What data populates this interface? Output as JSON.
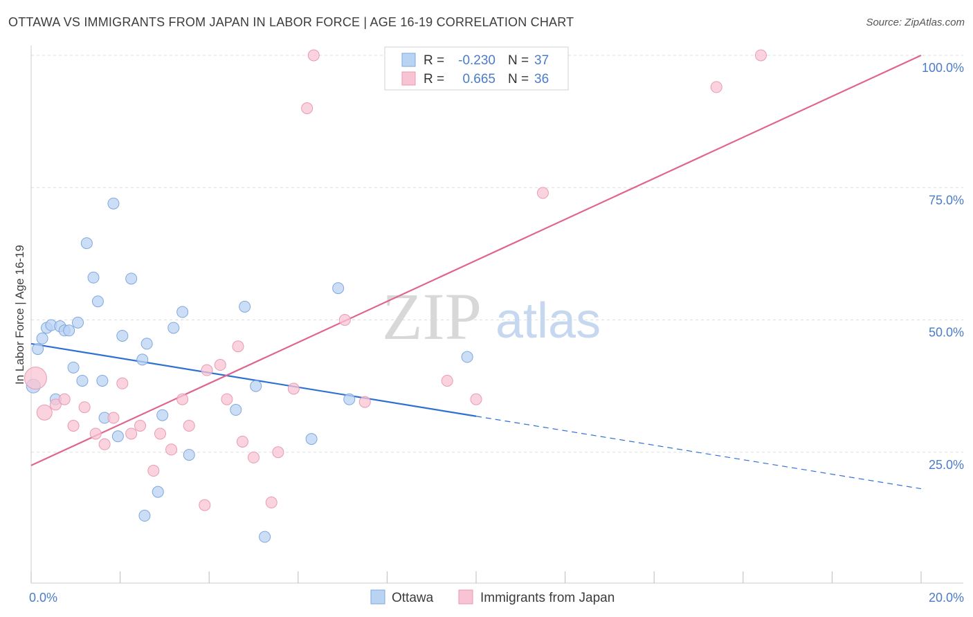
{
  "title": "OTTAWA VS IMMIGRANTS FROM JAPAN IN LABOR FORCE | AGE 16-19 CORRELATION CHART",
  "source": "Source: ZipAtlas.com",
  "watermark": {
    "zip": "ZIP",
    "atlas": "atlas"
  },
  "colors": {
    "blue_fill": "#b9d3f3",
    "blue_stroke": "#7ea7e0",
    "blue_line": "#2e6fd4",
    "pink_fill": "#f8c4d3",
    "pink_stroke": "#e99ab3",
    "pink_line": "#e0658e",
    "axis_label": "#4a7cc9",
    "grid": "#dddddd"
  },
  "legend": {
    "rows": [
      {
        "r_label": "R =",
        "r_value": "-0.230",
        "n_label": "N =",
        "n_value": "37"
      },
      {
        "r_label": "R =",
        "r_value": "0.665",
        "n_label": "N =",
        "n_value": "36"
      }
    ]
  },
  "chart_data": {
    "type": "scatter",
    "title": "OTTAWA VS IMMIGRANTS FROM JAPAN IN LABOR FORCE | AGE 16-19 CORRELATION CHART",
    "xlabel": "",
    "ylabel": "In Labor Force | Age 16-19",
    "xlim": [
      0,
      20
    ],
    "ylim": [
      0,
      105
    ],
    "x_tick_labels": [
      {
        "value": 0,
        "label": "0.0%"
      },
      {
        "value": 20,
        "label": "20.0%"
      }
    ],
    "y_tick_labels": [
      {
        "value": 25,
        "label": "25.0%"
      },
      {
        "value": 50,
        "label": "50.0%"
      },
      {
        "value": 75,
        "label": "75.0%"
      },
      {
        "value": 100,
        "label": "100.0%"
      }
    ],
    "series": [
      {
        "name": "Ottawa",
        "color": "blue",
        "trend": {
          "x0": 0,
          "y0": 45.5,
          "x1": 10,
          "y1": 31.8,
          "dash_to_x": 20,
          "dash_to_y": 18.1
        },
        "points": [
          [
            0.05,
            37.5
          ],
          [
            0.15,
            44.5
          ],
          [
            0.25,
            46.5
          ],
          [
            0.35,
            48.5
          ],
          [
            0.45,
            49.0
          ],
          [
            0.55,
            35.0
          ],
          [
            0.65,
            48.8
          ],
          [
            0.75,
            48.0
          ],
          [
            0.85,
            48.0
          ],
          [
            0.95,
            41.0
          ],
          [
            1.05,
            49.5
          ],
          [
            1.15,
            38.5
          ],
          [
            1.25,
            64.5
          ],
          [
            1.4,
            58.0
          ],
          [
            1.5,
            53.5
          ],
          [
            1.6,
            38.5
          ],
          [
            1.65,
            31.5
          ],
          [
            1.85,
            72.0
          ],
          [
            1.95,
            28.0
          ],
          [
            2.05,
            47.0
          ],
          [
            2.25,
            57.8
          ],
          [
            2.5,
            42.5
          ],
          [
            2.6,
            45.5
          ],
          [
            2.85,
            17.5
          ],
          [
            2.95,
            32.0
          ],
          [
            2.55,
            13.0
          ],
          [
            3.2,
            48.5
          ],
          [
            3.4,
            51.5
          ],
          [
            3.55,
            24.5
          ],
          [
            4.6,
            33.0
          ],
          [
            4.8,
            52.5
          ],
          [
            5.05,
            37.5
          ],
          [
            5.25,
            9.0
          ],
          [
            6.3,
            27.5
          ],
          [
            6.9,
            56.0
          ],
          [
            7.15,
            35.0
          ],
          [
            9.8,
            43.0
          ]
        ]
      },
      {
        "name": "Immigrants from Japan",
        "color": "pink",
        "trend": {
          "x0": 0,
          "y0": 22.5,
          "x1": 20,
          "y1": 100.0
        },
        "points": [
          [
            0.1,
            39.0
          ],
          [
            0.3,
            32.5
          ],
          [
            0.55,
            34.0
          ],
          [
            0.75,
            35.0
          ],
          [
            0.95,
            30.0
          ],
          [
            1.2,
            33.5
          ],
          [
            1.45,
            28.5
          ],
          [
            1.65,
            26.5
          ],
          [
            1.85,
            31.5
          ],
          [
            2.05,
            38.0
          ],
          [
            2.25,
            28.5
          ],
          [
            2.45,
            30.0
          ],
          [
            2.75,
            21.5
          ],
          [
            2.9,
            28.5
          ],
          [
            3.15,
            25.5
          ],
          [
            3.4,
            35.0
          ],
          [
            3.55,
            30.0
          ],
          [
            3.9,
            15.0
          ],
          [
            3.95,
            40.5
          ],
          [
            4.25,
            41.5
          ],
          [
            4.4,
            35.0
          ],
          [
            4.65,
            45.0
          ],
          [
            4.75,
            27.0
          ],
          [
            5.0,
            24.0
          ],
          [
            5.4,
            15.5
          ],
          [
            5.55,
            25.0
          ],
          [
            5.9,
            37.0
          ],
          [
            6.2,
            90.0
          ],
          [
            6.35,
            100.0
          ],
          [
            7.05,
            50.0
          ],
          [
            7.5,
            34.5
          ],
          [
            9.35,
            38.5
          ],
          [
            10.0,
            35.0
          ],
          [
            11.5,
            74.0
          ],
          [
            15.4,
            94.0
          ],
          [
            16.4,
            100.0
          ]
        ]
      }
    ]
  },
  "bottom_legend": {
    "items": [
      "Ottawa",
      "Immigrants from Japan"
    ]
  }
}
